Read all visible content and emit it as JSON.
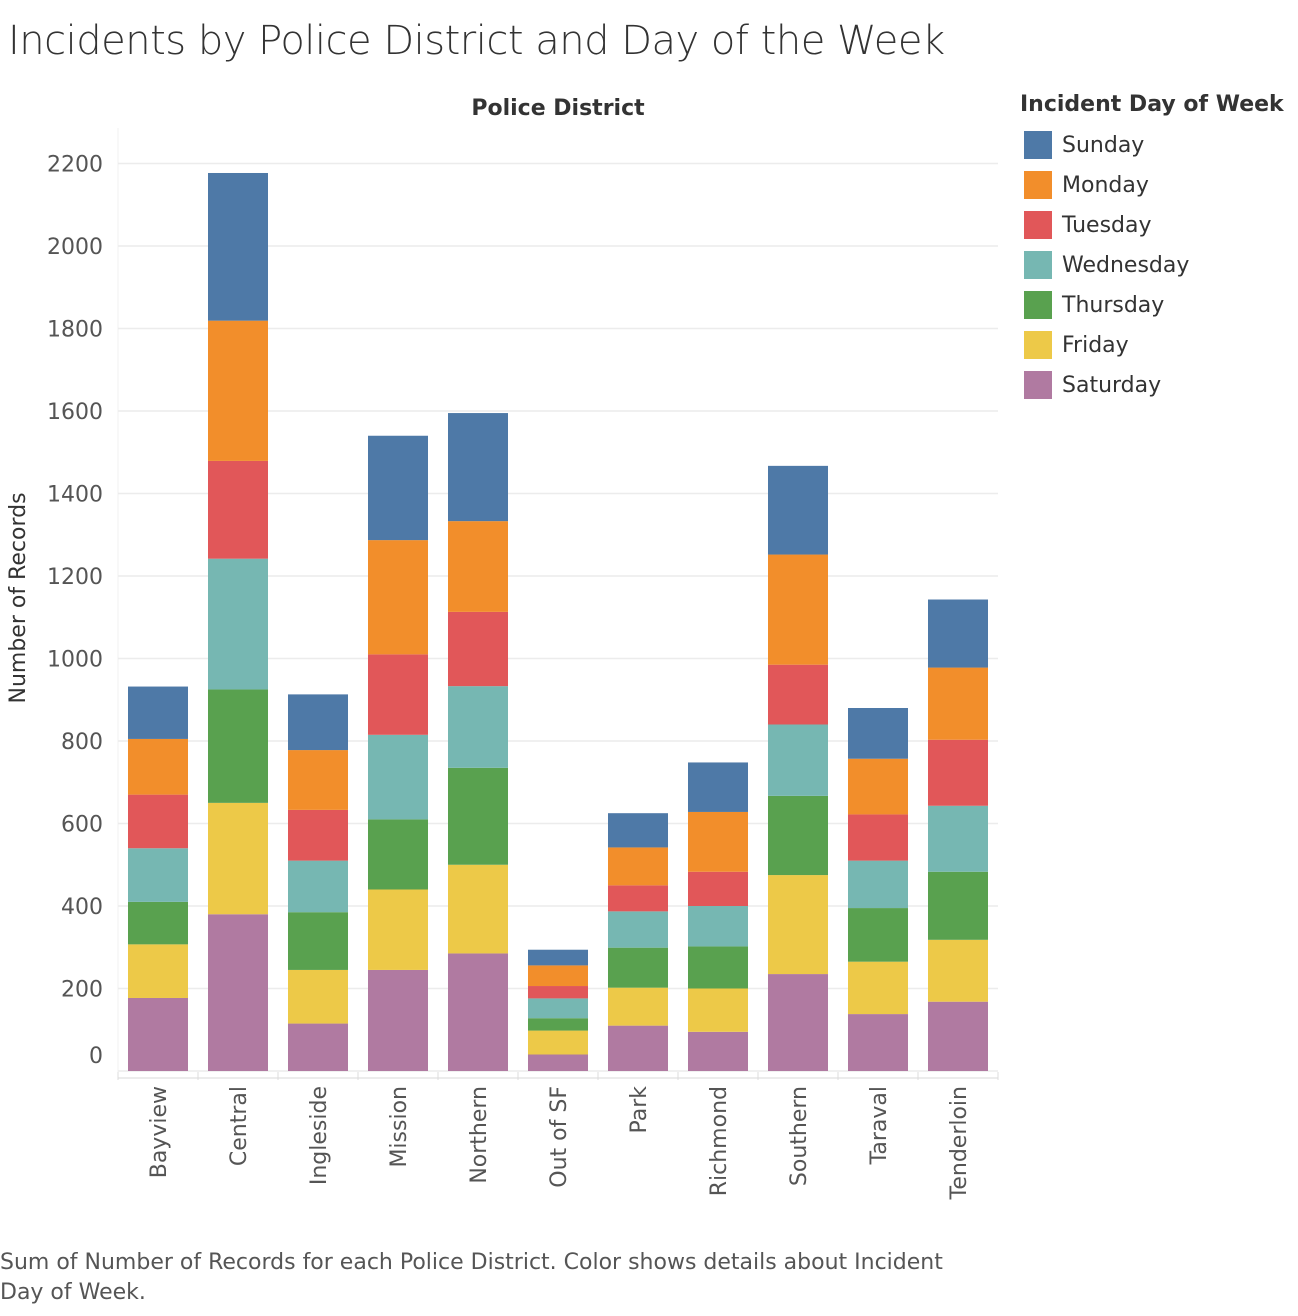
{
  "title": "Incidents by Police District and Day of the Week",
  "caption": "Sum of Number of Records for each Police District.  Color shows details about Incident Day of Week.",
  "colors": {
    "Sunday": "#4e79a7",
    "Monday": "#f28e2b",
    "Tuesday": "#e15759",
    "Wednesday": "#76b7b2",
    "Thursday": "#59a14f",
    "Friday": "#edc948",
    "Saturday": "#b07aa1"
  },
  "chart_data": {
    "type": "bar",
    "stacked": true,
    "title": "Incidents by Police District and Day of the Week",
    "column_header": "Police District",
    "ylabel": "Number of Records",
    "ylim": [
      0,
      2300
    ],
    "yticks": [
      0,
      200,
      400,
      600,
      800,
      1000,
      1200,
      1400,
      1600,
      1800,
      2000,
      2200
    ],
    "grid": true,
    "legend_title": "Incident Day of Week",
    "legend_position": "right",
    "categories": [
      "Bayview",
      "Central",
      "Ingleside",
      "Mission",
      "Northern",
      "Out of SF",
      "Park",
      "Richmond",
      "Southern",
      "Taraval",
      "Tenderloin"
    ],
    "series": [
      {
        "name": "Saturday",
        "values": [
          177,
          380,
          115,
          245,
          285,
          40,
          110,
          95,
          235,
          138,
          168
        ]
      },
      {
        "name": "Friday",
        "values": [
          130,
          270,
          130,
          195,
          215,
          58,
          92,
          105,
          240,
          127,
          150
        ]
      },
      {
        "name": "Thursday",
        "values": [
          103,
          275,
          140,
          170,
          235,
          30,
          97,
          102,
          192,
          130,
          165
        ]
      },
      {
        "name": "Wednesday",
        "values": [
          130,
          317,
          125,
          205,
          198,
          48,
          88,
          98,
          173,
          115,
          160
        ]
      },
      {
        "name": "Tuesday",
        "values": [
          130,
          237,
          123,
          195,
          180,
          30,
          63,
          83,
          145,
          112,
          160
        ]
      },
      {
        "name": "Monday",
        "values": [
          135,
          340,
          145,
          277,
          220,
          50,
          92,
          145,
          267,
          135,
          175
        ]
      },
      {
        "name": "Sunday",
        "values": [
          127,
          358,
          135,
          253,
          262,
          38,
          83,
          120,
          215,
          123,
          165
        ]
      }
    ]
  }
}
